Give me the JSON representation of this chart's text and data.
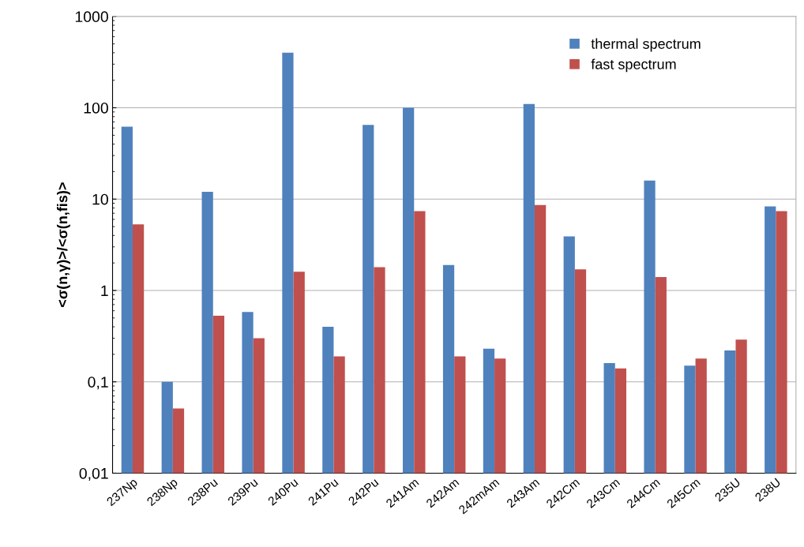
{
  "chart_data": {
    "type": "bar",
    "ylabel": "<σ(n,γ)>/<σ(n,fis)>",
    "categories": [
      "237Np",
      "238Np",
      "238Pu",
      "239Pu",
      "240Pu",
      "241Pu",
      "242Pu",
      "241Am",
      "242Am",
      "242mAm",
      "243Am",
      "242Cm",
      "243Cm",
      "244Cm",
      "245Cm",
      "235U",
      "238U"
    ],
    "series": [
      {
        "name": "thermal spectrum",
        "color": "#4f81bd",
        "values": [
          62,
          0.1,
          12,
          0.58,
          400,
          0.4,
          65,
          100,
          1.9,
          0.23,
          110,
          3.9,
          0.16,
          16,
          0.15,
          0.22,
          8.3
        ]
      },
      {
        "name": "fast spectrum",
        "color": "#c0504d",
        "values": [
          5.3,
          0.051,
          0.53,
          0.3,
          1.6,
          0.19,
          1.8,
          7.4,
          0.19,
          0.18,
          8.6,
          1.7,
          0.14,
          1.4,
          0.18,
          0.29,
          7.4
        ]
      }
    ],
    "log": true,
    "ylim": [
      0.01,
      1000
    ],
    "yticks": [
      {
        "value": 0.01,
        "label": "0,01"
      },
      {
        "value": 0.1,
        "label": "0,1"
      },
      1,
      10,
      100,
      1000
    ],
    "grid": "y",
    "legend": "top right"
  }
}
